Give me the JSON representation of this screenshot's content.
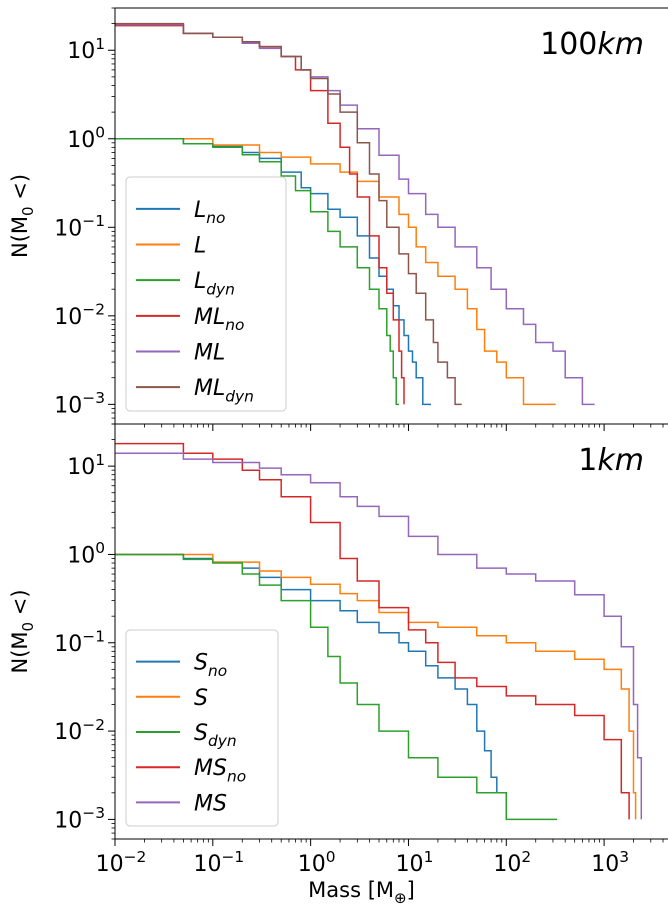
{
  "chart_data": [
    {
      "type": "line",
      "step": true,
      "panel_label": "100",
      "panel_label_unit": "km",
      "ylabel": "N(M",
      "ylabel_sub": "0",
      "ylabel_tail": "<)",
      "xscale": "log",
      "yscale": "log",
      "xlim": [
        0.01,
        4500
      ],
      "ylim": [
        0.0006,
        30
      ],
      "legend_loc": "lower-left",
      "yticks": [
        {
          "value": 10,
          "base": "10",
          "exp": "1"
        },
        {
          "value": 1,
          "base": "10",
          "exp": "0"
        },
        {
          "value": 0.1,
          "base": "10",
          "exp": "−1"
        },
        {
          "value": 0.01,
          "base": "10",
          "exp": "−2"
        },
        {
          "value": 0.001,
          "base": "10",
          "exp": "−3"
        }
      ],
      "series": [
        {
          "name": "L",
          "sub": "no",
          "color": "#1f77b4",
          "points": [
            [
              0.01,
              1.0
            ],
            [
              0.05,
              0.88
            ],
            [
              0.1,
              0.82
            ],
            [
              0.2,
              0.7
            ],
            [
              0.3,
              0.6
            ],
            [
              0.5,
              0.42
            ],
            [
              0.8,
              0.28
            ],
            [
              1,
              0.24
            ],
            [
              1.5,
              0.16
            ],
            [
              2,
              0.13
            ],
            [
              3,
              0.08
            ],
            [
              4,
              0.045
            ],
            [
              5,
              0.028
            ],
            [
              6,
              0.02
            ],
            [
              7,
              0.013
            ],
            [
              8,
              0.009
            ],
            [
              9,
              0.006
            ],
            [
              10,
              0.004
            ],
            [
              11,
              0.003
            ],
            [
              12,
              0.002
            ],
            [
              14,
              0.001
            ],
            [
              17,
              0.001
            ]
          ]
        },
        {
          "name": "L",
          "sub": "",
          "color": "#ff7f0e",
          "points": [
            [
              0.01,
              1.0
            ],
            [
              0.1,
              0.85
            ],
            [
              0.3,
              0.7
            ],
            [
              0.5,
              0.62
            ],
            [
              1,
              0.52
            ],
            [
              2,
              0.42
            ],
            [
              3,
              0.33
            ],
            [
              5,
              0.22
            ],
            [
              8,
              0.14
            ],
            [
              10,
              0.1
            ],
            [
              12,
              0.06
            ],
            [
              15,
              0.04
            ],
            [
              20,
              0.028
            ],
            [
              30,
              0.02
            ],
            [
              40,
              0.012
            ],
            [
              50,
              0.007
            ],
            [
              60,
              0.004
            ],
            [
              80,
              0.003
            ],
            [
              100,
              0.002
            ],
            [
              150,
              0.001
            ],
            [
              320,
              0.001
            ]
          ]
        },
        {
          "name": "L",
          "sub": "dyn",
          "color": "#2ca02c",
          "points": [
            [
              0.01,
              1.0
            ],
            [
              0.05,
              0.88
            ],
            [
              0.1,
              0.8
            ],
            [
              0.2,
              0.66
            ],
            [
              0.3,
              0.55
            ],
            [
              0.5,
              0.38
            ],
            [
              0.7,
              0.26
            ],
            [
              1,
              0.15
            ],
            [
              1.5,
              0.09
            ],
            [
              2,
              0.06
            ],
            [
              3,
              0.035
            ],
            [
              4,
              0.02
            ],
            [
              5,
              0.012
            ],
            [
              6,
              0.006
            ],
            [
              6.5,
              0.004
            ],
            [
              7,
              0.002
            ],
            [
              7.5,
              0.001
            ],
            [
              8,
              0.001
            ]
          ]
        },
        {
          "name": "ML",
          "sub": "no",
          "color": "#d62728",
          "points": [
            [
              0.01,
              19
            ],
            [
              0.05,
              15.5
            ],
            [
              0.1,
              14
            ],
            [
              0.2,
              12.5
            ],
            [
              0.3,
              11
            ],
            [
              0.5,
              8.5
            ],
            [
              0.7,
              6
            ],
            [
              1,
              3.5
            ],
            [
              1.5,
              1.5
            ],
            [
              2,
              0.8
            ],
            [
              2.5,
              0.4
            ],
            [
              3,
              0.22
            ],
            [
              4,
              0.08
            ],
            [
              5,
              0.035
            ],
            [
              6,
              0.018
            ],
            [
              7,
              0.009
            ],
            [
              8,
              0.004
            ],
            [
              8.5,
              0.002
            ],
            [
              9,
              0.001
            ]
          ]
        },
        {
          "name": "ML",
          "sub": "",
          "color": "#9467bd",
          "points": [
            [
              0.01,
              19.5
            ],
            [
              0.05,
              15.5
            ],
            [
              0.1,
              14
            ],
            [
              0.2,
              12
            ],
            [
              0.3,
              10.5
            ],
            [
              0.5,
              8.5
            ],
            [
              0.8,
              6
            ],
            [
              1,
              5
            ],
            [
              1.5,
              3.5
            ],
            [
              2,
              2.4
            ],
            [
              3,
              1.3
            ],
            [
              5,
              0.65
            ],
            [
              8,
              0.35
            ],
            [
              10,
              0.24
            ],
            [
              15,
              0.14
            ],
            [
              20,
              0.1
            ],
            [
              30,
              0.06
            ],
            [
              50,
              0.035
            ],
            [
              70,
              0.02
            ],
            [
              100,
              0.012
            ],
            [
              150,
              0.008
            ],
            [
              200,
              0.005
            ],
            [
              300,
              0.004
            ],
            [
              400,
              0.002
            ],
            [
              600,
              0.001
            ],
            [
              800,
              0.001
            ]
          ]
        },
        {
          "name": "ML",
          "sub": "dyn",
          "color": "#8c564b",
          "points": [
            [
              0.01,
              20
            ],
            [
              0.05,
              15.5
            ],
            [
              0.1,
              14
            ],
            [
              0.2,
              12.5
            ],
            [
              0.3,
              11
            ],
            [
              0.5,
              8.5
            ],
            [
              0.8,
              6
            ],
            [
              1,
              4.8
            ],
            [
              1.5,
              3.2
            ],
            [
              2,
              2
            ],
            [
              3,
              0.9
            ],
            [
              4,
              0.4
            ],
            [
              5,
              0.2
            ],
            [
              6,
              0.1
            ],
            [
              8,
              0.05
            ],
            [
              10,
              0.03
            ],
            [
              12,
              0.018
            ],
            [
              15,
              0.009
            ],
            [
              18,
              0.005
            ],
            [
              20,
              0.003
            ],
            [
              25,
              0.002
            ],
            [
              30,
              0.001
            ],
            [
              35,
              0.001
            ]
          ]
        }
      ]
    },
    {
      "type": "line",
      "step": true,
      "panel_label": "1",
      "panel_label_unit": "km",
      "ylabel": "N(M",
      "ylabel_sub": "0",
      "ylabel_tail": "<)",
      "xlabel": "Mass [M",
      "xlabel_sub": "⊕",
      "xlabel_tail": "]",
      "xscale": "log",
      "yscale": "log",
      "xlim": [
        0.01,
        4500
      ],
      "ylim": [
        0.0006,
        30
      ],
      "legend_loc": "lower-left",
      "xticks": [
        {
          "value": 0.01,
          "base": "10",
          "exp": "−2"
        },
        {
          "value": 0.1,
          "base": "10",
          "exp": "−1"
        },
        {
          "value": 1,
          "base": "10",
          "exp": "0"
        },
        {
          "value": 10,
          "base": "10",
          "exp": "1"
        },
        {
          "value": 100,
          "base": "10",
          "exp": "2"
        },
        {
          "value": 1000,
          "base": "10",
          "exp": "3"
        }
      ],
      "yticks": [
        {
          "value": 10,
          "base": "10",
          "exp": "1"
        },
        {
          "value": 1,
          "base": "10",
          "exp": "0"
        },
        {
          "value": 0.1,
          "base": "10",
          "exp": "−1"
        },
        {
          "value": 0.01,
          "base": "10",
          "exp": "−2"
        },
        {
          "value": 0.001,
          "base": "10",
          "exp": "−3"
        }
      ],
      "series": [
        {
          "name": "S",
          "sub": "no",
          "color": "#1f77b4",
          "points": [
            [
              0.01,
              1.0
            ],
            [
              0.05,
              0.9
            ],
            [
              0.1,
              0.82
            ],
            [
              0.2,
              0.7
            ],
            [
              0.3,
              0.55
            ],
            [
              0.5,
              0.4
            ],
            [
              1,
              0.3
            ],
            [
              2,
              0.23
            ],
            [
              3,
              0.17
            ],
            [
              5,
              0.13
            ],
            [
              8,
              0.1
            ],
            [
              10,
              0.08
            ],
            [
              15,
              0.055
            ],
            [
              20,
              0.04
            ],
            [
              30,
              0.03
            ],
            [
              40,
              0.02
            ],
            [
              50,
              0.01
            ],
            [
              60,
              0.006
            ],
            [
              70,
              0.003
            ],
            [
              80,
              0.002
            ],
            [
              100,
              0.001
            ]
          ]
        },
        {
          "name": "S",
          "sub": "",
          "color": "#ff7f0e",
          "points": [
            [
              0.01,
              1.0
            ],
            [
              0.1,
              0.82
            ],
            [
              0.3,
              0.65
            ],
            [
              0.5,
              0.55
            ],
            [
              1,
              0.46
            ],
            [
              2,
              0.36
            ],
            [
              3,
              0.3
            ],
            [
              5,
              0.22
            ],
            [
              10,
              0.17
            ],
            [
              20,
              0.15
            ],
            [
              50,
              0.12
            ],
            [
              100,
              0.1
            ],
            [
              200,
              0.08
            ],
            [
              500,
              0.065
            ],
            [
              1000,
              0.05
            ],
            [
              1500,
              0.03
            ],
            [
              1800,
              0.01
            ],
            [
              2000,
              0.002
            ],
            [
              2100,
              0.001
            ]
          ]
        },
        {
          "name": "S",
          "sub": "dyn",
          "color": "#2ca02c",
          "points": [
            [
              0.01,
              1.0
            ],
            [
              0.05,
              0.88
            ],
            [
              0.1,
              0.8
            ],
            [
              0.2,
              0.6
            ],
            [
              0.3,
              0.45
            ],
            [
              0.5,
              0.3
            ],
            [
              1,
              0.15
            ],
            [
              1.5,
              0.07
            ],
            [
              2,
              0.035
            ],
            [
              3,
              0.02
            ],
            [
              5,
              0.01
            ],
            [
              10,
              0.005
            ],
            [
              20,
              0.003
            ],
            [
              50,
              0.002
            ],
            [
              100,
              0.001
            ],
            [
              330,
              0.001
            ]
          ]
        },
        {
          "name": "MS",
          "sub": "no",
          "color": "#d62728",
          "points": [
            [
              0.01,
              18
            ],
            [
              0.05,
              14
            ],
            [
              0.1,
              12
            ],
            [
              0.2,
              9
            ],
            [
              0.3,
              7
            ],
            [
              0.5,
              4.5
            ],
            [
              1,
              2.3
            ],
            [
              2,
              0.9
            ],
            [
              3,
              0.5
            ],
            [
              5,
              0.25
            ],
            [
              10,
              0.14
            ],
            [
              15,
              0.1
            ],
            [
              20,
              0.06
            ],
            [
              30,
              0.04
            ],
            [
              50,
              0.032
            ],
            [
              100,
              0.025
            ],
            [
              200,
              0.02
            ],
            [
              500,
              0.015
            ],
            [
              1000,
              0.008
            ],
            [
              1500,
              0.002
            ],
            [
              1800,
              0.001
            ]
          ]
        },
        {
          "name": "MS",
          "sub": "",
          "color": "#9467bd",
          "points": [
            [
              0.01,
              14
            ],
            [
              0.05,
              12
            ],
            [
              0.1,
              11
            ],
            [
              0.3,
              9.5
            ],
            [
              0.5,
              8
            ],
            [
              1,
              6.5
            ],
            [
              2,
              4.5
            ],
            [
              3,
              3.5
            ],
            [
              5,
              2.7
            ],
            [
              10,
              1.6
            ],
            [
              20,
              1.0
            ],
            [
              50,
              0.7
            ],
            [
              100,
              0.6
            ],
            [
              200,
              0.5
            ],
            [
              500,
              0.35
            ],
            [
              1000,
              0.2
            ],
            [
              1500,
              0.09
            ],
            [
              2000,
              0.02
            ],
            [
              2200,
              0.005
            ],
            [
              2400,
              0.001
            ]
          ]
        }
      ]
    }
  ]
}
